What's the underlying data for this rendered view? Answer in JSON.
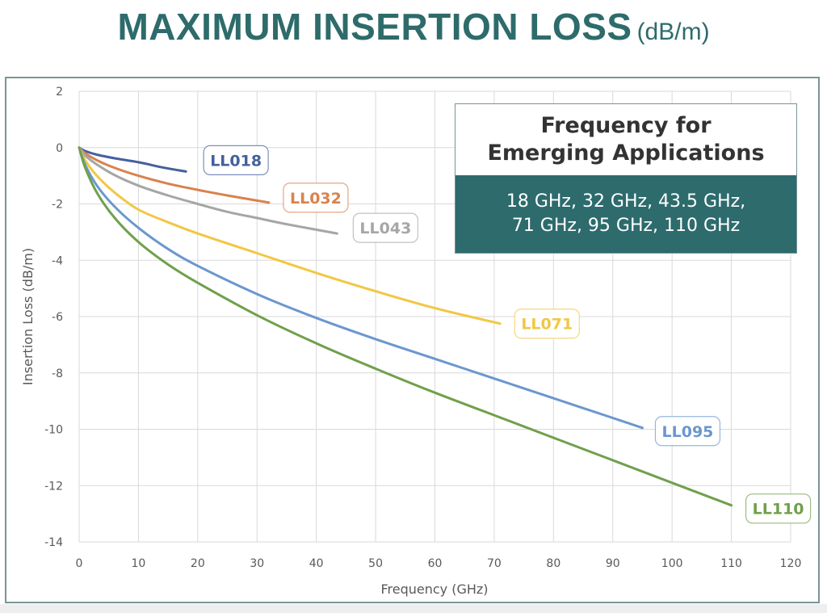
{
  "title": {
    "main": "MAXIMUM INSERTION LOSS",
    "unit": "(dB/m)"
  },
  "info_box": {
    "heading": [
      "Frequency for",
      "Emerging Applications"
    ],
    "body": [
      "18 GHz, 32 GHz, 43.5 GHz,",
      "71 GHz, 95 GHz, 110 GHz"
    ],
    "body_bg": "#2d6b6d"
  },
  "chart_data": {
    "type": "line",
    "title": "MAXIMUM INSERTION LOSS (dB/m)",
    "xlabel": "Frequency (GHz)",
    "ylabel": "Insertion Loss (dB/m)",
    "xlim": [
      0,
      120
    ],
    "ylim": [
      -14,
      2
    ],
    "xticks": [
      0,
      10,
      20,
      30,
      40,
      50,
      60,
      70,
      80,
      90,
      100,
      110,
      120
    ],
    "yticks": [
      2,
      0,
      -2,
      -4,
      -6,
      -8,
      -10,
      -12,
      -14
    ],
    "grid": true,
    "legend": "inline labels at series end",
    "series": [
      {
        "name": "LL018",
        "color": "#44609e",
        "x": [
          0,
          1,
          3,
          6,
          10,
          14,
          18
        ],
        "y": [
          0,
          -0.12,
          -0.25,
          -0.38,
          -0.52,
          -0.7,
          -0.85
        ]
      },
      {
        "name": "LL032",
        "color": "#d9824d",
        "x": [
          0,
          1,
          3,
          6,
          10,
          15,
          20,
          25,
          32
        ],
        "y": [
          0,
          -0.2,
          -0.45,
          -0.72,
          -1.0,
          -1.28,
          -1.5,
          -1.7,
          -1.95
        ]
      },
      {
        "name": "LL043",
        "color": "#a6a6a6",
        "x": [
          0,
          1,
          3,
          6,
          10,
          15,
          20,
          25,
          30,
          35,
          43.5
        ],
        "y": [
          0,
          -0.28,
          -0.6,
          -0.98,
          -1.35,
          -1.7,
          -2.0,
          -2.28,
          -2.5,
          -2.72,
          -3.05
        ]
      },
      {
        "name": "LL071",
        "color": "#f2c744",
        "x": [
          0,
          1,
          3,
          6,
          10,
          15,
          20,
          30,
          40,
          50,
          60,
          71
        ],
        "y": [
          0,
          -0.45,
          -1.0,
          -1.6,
          -2.2,
          -2.65,
          -3.05,
          -3.75,
          -4.45,
          -5.1,
          -5.7,
          -6.25
        ]
      },
      {
        "name": "LL095",
        "color": "#6b97cf",
        "x": [
          0,
          1,
          3,
          6,
          10,
          15,
          20,
          30,
          40,
          50,
          60,
          70,
          80,
          90,
          95
        ],
        "y": [
          0,
          -0.6,
          -1.35,
          -2.1,
          -2.85,
          -3.6,
          -4.2,
          -5.2,
          -6.05,
          -6.8,
          -7.5,
          -8.2,
          -8.9,
          -9.6,
          -9.95
        ]
      },
      {
        "name": "LL110",
        "color": "#70a04c",
        "x": [
          0,
          1,
          3,
          6,
          10,
          15,
          20,
          30,
          40,
          50,
          60,
          70,
          80,
          90,
          100,
          110
        ],
        "y": [
          0,
          -0.7,
          -1.6,
          -2.5,
          -3.35,
          -4.15,
          -4.8,
          -5.95,
          -6.95,
          -7.85,
          -8.7,
          -9.5,
          -10.3,
          -11.1,
          -11.9,
          -12.7
        ]
      }
    ]
  }
}
